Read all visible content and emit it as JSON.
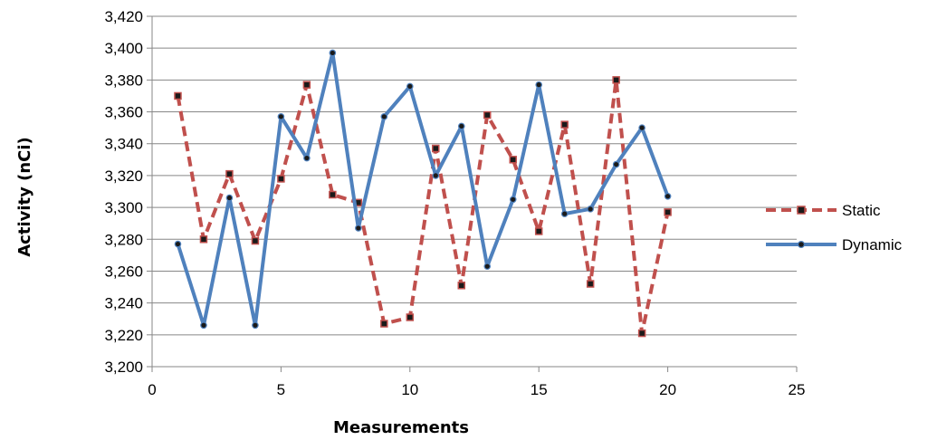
{
  "chart_data": {
    "type": "line",
    "title": "",
    "xlabel": "Measurements",
    "ylabel": "Activity (nCi)",
    "xlim": [
      0,
      25
    ],
    "ylim": [
      3200,
      3420
    ],
    "x_ticks": [
      0,
      5,
      10,
      15,
      20,
      25
    ],
    "y_ticks": [
      3200,
      3220,
      3240,
      3260,
      3280,
      3300,
      3320,
      3340,
      3360,
      3380,
      3400,
      3420
    ],
    "x_tick_labels": [
      "0",
      "5",
      "10",
      "15",
      "20",
      "25"
    ],
    "y_tick_labels": [
      "3,200",
      "3,220",
      "3,240",
      "3,260",
      "3,280",
      "3,300",
      "3,320",
      "3,340",
      "3,360",
      "3,380",
      "3,400",
      "3,420"
    ],
    "grid": "horizontal",
    "legend_position": "right",
    "x": [
      1,
      2,
      3,
      4,
      5,
      6,
      7,
      8,
      9,
      10,
      11,
      12,
      13,
      14,
      15,
      16,
      17,
      18,
      19,
      20
    ],
    "series": [
      {
        "name": "Static",
        "color": "#c0504d",
        "line_style": "dashed",
        "marker": "square",
        "values": [
          3370,
          3280,
          3321,
          3279,
          3318,
          3377,
          3308,
          3303,
          3227,
          3231,
          3337,
          3251,
          3358,
          3330,
          3285,
          3352,
          3252,
          3380,
          3221,
          3297
        ]
      },
      {
        "name": "Dynamic",
        "color": "#4f81bd",
        "line_style": "solid",
        "marker": "circle",
        "values": [
          3277,
          3226,
          3306,
          3226,
          3357,
          3331,
          3397,
          3287,
          3357,
          3376,
          3320,
          3351,
          3263,
          3305,
          3377,
          3296,
          3299,
          3327,
          3350,
          3307
        ]
      }
    ]
  }
}
